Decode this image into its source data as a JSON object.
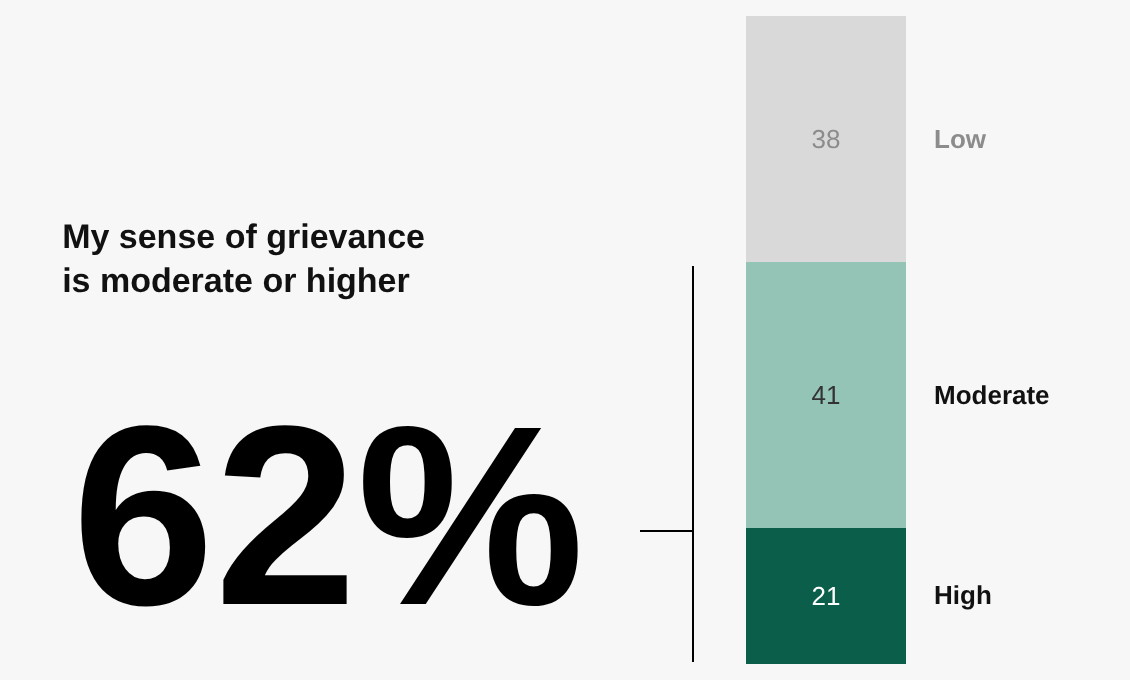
{
  "chart_data": {
    "type": "bar",
    "stacked": true,
    "title": "My sense of grievance\nis moderate or higher",
    "categories": [
      null
    ],
    "series": [
      {
        "name": "High",
        "color": "#0b5e4a",
        "values": [
          21
        ]
      },
      {
        "name": "Moderate",
        "color": "#94c4b6",
        "values": [
          41
        ]
      },
      {
        "name": "Low",
        "color": "#d9d9d9",
        "values": [
          38
        ]
      }
    ],
    "data_labels": true,
    "legend": false,
    "annotations": [
      "62%"
    ]
  }
}
